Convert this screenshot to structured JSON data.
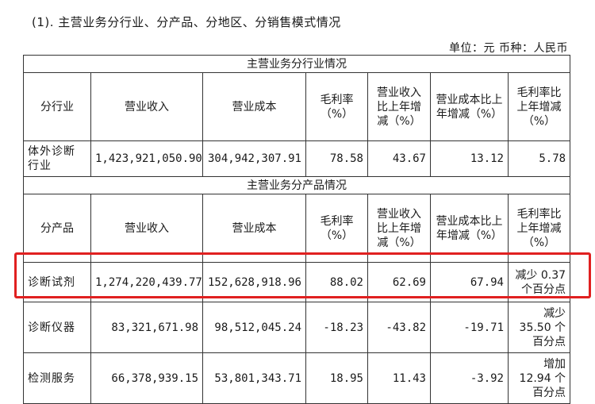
{
  "heading": "(1).  主营业务分行业、分产品、分地区、分销售模式情况",
  "unit": "单位：元  币种：人民币",
  "sections": {
    "industry_title": "主营业务分行业情况",
    "product_title": "主营业务分产品情况"
  },
  "columns_industry": [
    "分行业",
    "营业收入",
    "营业成本",
    "毛利率（%）",
    "营业收入比上年增减（%）",
    "营业成本比上年增减（%）",
    "毛利率比上年增减（%）"
  ],
  "columns_product": [
    "分产品",
    "营业收入",
    "营业成本",
    "毛利率（%）",
    "营业收入比上年增减（%）",
    "营业成本比上年增减（%）",
    "毛利率比上年增减（%）"
  ],
  "industry_rows": [
    {
      "name": "体外诊断行业",
      "revenue": "1,423,921,050.90",
      "cost": "304,942,307.91",
      "margin": "78.58",
      "rev_change": "43.67",
      "cost_change": "13.12",
      "margin_change": "5.78"
    }
  ],
  "product_rows": [
    {
      "name": "诊断试剂",
      "revenue": "1,274,220,439.77",
      "cost": "152,628,918.96",
      "margin": "88.02",
      "rev_change": "62.69",
      "cost_change": "67.94",
      "margin_change": "减少 0.37 个百分点"
    },
    {
      "name": "诊断仪器",
      "revenue": "83,321,671.98",
      "cost": "98,512,045.24",
      "margin": "-18.23",
      "rev_change": "-43.82",
      "cost_change": "-19.71",
      "margin_change": "减少 35.50 个百分点"
    },
    {
      "name": "检测服务",
      "revenue": "66,378,939.15",
      "cost": "53,801,343.71",
      "margin": "18.95",
      "rev_change": "11.43",
      "cost_change": "-3.92",
      "margin_change": "增加 12.94 个百分点"
    }
  ],
  "highlight_color": "#e02020"
}
